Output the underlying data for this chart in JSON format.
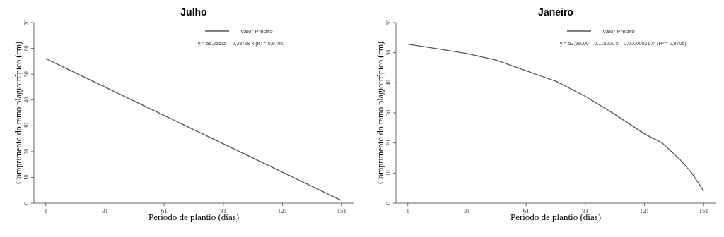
{
  "chart_data": [
    {
      "type": "line",
      "title": "Julho",
      "xlabel": "Período de plantio (dias)",
      "ylabel": "Comprimento do ramo plagiotrópico (cm)",
      "x": [
        1,
        31,
        61,
        91,
        121,
        151
      ],
      "xlim": [
        -5,
        157
      ],
      "xticks": [
        1,
        31,
        61,
        91,
        121,
        151
      ],
      "ylim": [
        0,
        70
      ],
      "yticks": [
        0,
        10,
        20,
        30,
        40,
        50,
        60,
        70
      ],
      "legend": "top right",
      "annotations": [
        "y = 56,25685 – 0,38719 x  (R² = 0,9705)"
      ],
      "series": [
        {
          "name": "Valor Predito",
          "color": "#555555",
          "values": [
            56,
            45,
            34,
            23,
            12,
            1
          ]
        }
      ]
    },
    {
      "type": "line",
      "title": "Janeiro",
      "xlabel": "Período de plantio (dias)",
      "ylabel": "Comprimento do ramo plagiotrópico (cm)",
      "x": [
        1,
        16,
        31,
        46,
        61,
        76,
        91,
        106,
        121,
        130,
        139,
        145,
        151
      ],
      "xlim": [
        -5,
        157
      ],
      "xticks": [
        1,
        31,
        61,
        91,
        121,
        151
      ],
      "ylim": [
        0,
        60
      ],
      "yticks": [
        0,
        10,
        20,
        30,
        40,
        50,
        60
      ],
      "legend": "top right",
      "annotations": [
        "y = 52,99000 – 0,115200 x – 0,00000921 x³  (R² = 0,9705)"
      ],
      "series": [
        {
          "name": "Valor Predito",
          "color": "#555555",
          "values": [
            52.8,
            51.3,
            49.7,
            47.5,
            44,
            40.5,
            35.5,
            29.5,
            23,
            20,
            14.5,
            10,
            4
          ]
        }
      ]
    }
  ]
}
